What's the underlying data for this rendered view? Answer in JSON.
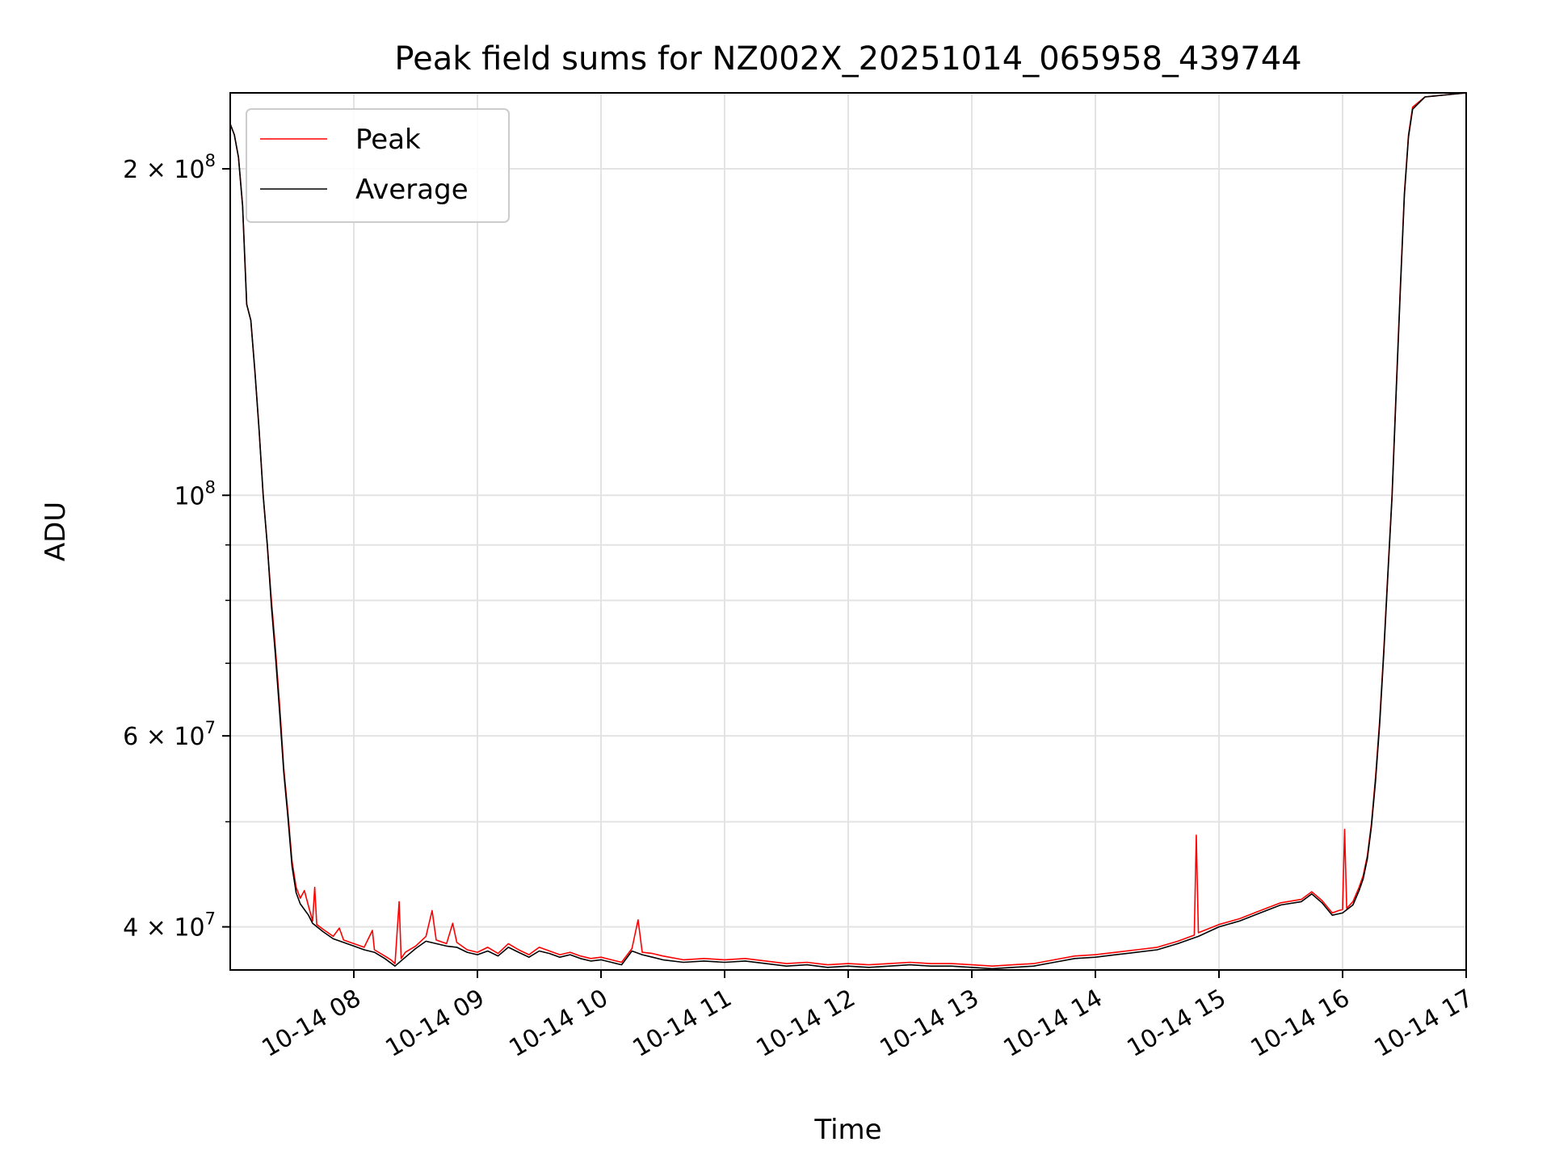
{
  "chart_data": {
    "type": "line",
    "title": "Peak field sums for NZ002X_20251014_065958_439744",
    "xlabel": "Time",
    "ylabel": "ADU",
    "xlim": [
      "2025-10-14 07:00",
      "2025-10-14 17:00"
    ],
    "ylim": [
      36500000,
      235000000
    ],
    "yscale": "log",
    "grid": true,
    "legend_position": "upper-left",
    "x_tick_labels": [
      "10-14 08",
      "10-14 09",
      "10-14 10",
      "10-14 11",
      "10-14 12",
      "10-14 13",
      "10-14 14",
      "10-14 15",
      "10-14 16",
      "10-14 17"
    ],
    "x_tick_times": [
      "2025-10-14 08:00",
      "2025-10-14 09:00",
      "2025-10-14 10:00",
      "2025-10-14 11:00",
      "2025-10-14 12:00",
      "2025-10-14 13:00",
      "2025-10-14 14:00",
      "2025-10-14 15:00",
      "2025-10-14 16:00",
      "2025-10-14 17:00"
    ],
    "y_major_ticks": [
      {
        "value": 40000000,
        "mantissa": "4 × 10",
        "exponent": "7"
      },
      {
        "value": 60000000,
        "mantissa": "6 × 10",
        "exponent": "7"
      },
      {
        "value": 100000000,
        "mantissa": "10",
        "exponent": "8"
      },
      {
        "value": 200000000,
        "mantissa": "2 × 10",
        "exponent": "8"
      }
    ],
    "y_minor_ticks": [
      50000000,
      70000000,
      80000000,
      90000000
    ],
    "series": [
      {
        "name": "Peak",
        "color": "#ff0000",
        "points": [
          [
            "07:00",
            220000000
          ],
          [
            "07:02",
            215000000
          ],
          [
            "07:04",
            205000000
          ],
          [
            "07:06",
            185000000
          ],
          [
            "07:08",
            150000000
          ],
          [
            "07:10",
            145000000
          ],
          [
            "07:12",
            130000000
          ],
          [
            "07:14",
            115000000
          ],
          [
            "07:16",
            100000000
          ],
          [
            "07:18",
            90000000
          ],
          [
            "07:20",
            80000000
          ],
          [
            "07:22",
            72000000
          ],
          [
            "07:24",
            64000000
          ],
          [
            "07:26",
            56000000
          ],
          [
            "07:28",
            51000000
          ],
          [
            "07:30",
            46000000
          ],
          [
            "07:32",
            43500000
          ],
          [
            "07:34",
            42500000
          ],
          [
            "07:36",
            43200000
          ],
          [
            "07:38",
            41800000
          ],
          [
            "07:40",
            40500000
          ],
          [
            "07:41",
            43500000
          ],
          [
            "07:42",
            40200000
          ],
          [
            "07:45",
            39800000
          ],
          [
            "07:50",
            39200000
          ],
          [
            "07:53",
            39900000
          ],
          [
            "07:55",
            38900000
          ],
          [
            "08:00",
            38600000
          ],
          [
            "08:05",
            38300000
          ],
          [
            "08:09",
            39700000
          ],
          [
            "08:10",
            38100000
          ],
          [
            "08:15",
            37600000
          ],
          [
            "08:18",
            37300000
          ],
          [
            "08:20",
            37000000
          ],
          [
            "08:22",
            42200000
          ],
          [
            "08:23",
            37400000
          ],
          [
            "08:25",
            37900000
          ],
          [
            "08:30",
            38400000
          ],
          [
            "08:35",
            39200000
          ],
          [
            "08:38",
            41400000
          ],
          [
            "08:40",
            38900000
          ],
          [
            "08:45",
            38600000
          ],
          [
            "08:48",
            40300000
          ],
          [
            "08:50",
            38700000
          ],
          [
            "08:55",
            38100000
          ],
          [
            "09:00",
            37900000
          ],
          [
            "09:05",
            38300000
          ],
          [
            "09:10",
            37800000
          ],
          [
            "09:15",
            38600000
          ],
          [
            "09:20",
            38100000
          ],
          [
            "09:25",
            37700000
          ],
          [
            "09:30",
            38300000
          ],
          [
            "09:35",
            38000000
          ],
          [
            "09:40",
            37700000
          ],
          [
            "09:45",
            37900000
          ],
          [
            "09:50",
            37600000
          ],
          [
            "09:55",
            37400000
          ],
          [
            "10:00",
            37500000
          ],
          [
            "10:05",
            37300000
          ],
          [
            "10:10",
            37100000
          ],
          [
            "10:15",
            38200000
          ],
          [
            "10:18",
            40600000
          ],
          [
            "10:20",
            37900000
          ],
          [
            "10:25",
            37800000
          ],
          [
            "10:30",
            37600000
          ],
          [
            "10:40",
            37300000
          ],
          [
            "10:50",
            37400000
          ],
          [
            "11:00",
            37300000
          ],
          [
            "11:10",
            37400000
          ],
          [
            "11:20",
            37200000
          ],
          [
            "11:30",
            37000000
          ],
          [
            "11:40",
            37100000
          ],
          [
            "11:50",
            36900000
          ],
          [
            "12:00",
            37000000
          ],
          [
            "12:10",
            36900000
          ],
          [
            "12:20",
            37000000
          ],
          [
            "12:30",
            37100000
          ],
          [
            "12:40",
            37000000
          ],
          [
            "12:50",
            37000000
          ],
          [
            "13:00",
            36900000
          ],
          [
            "13:10",
            36800000
          ],
          [
            "13:20",
            36900000
          ],
          [
            "13:30",
            37000000
          ],
          [
            "13:40",
            37300000
          ],
          [
            "13:50",
            37600000
          ],
          [
            "14:00",
            37700000
          ],
          [
            "14:10",
            37900000
          ],
          [
            "14:20",
            38100000
          ],
          [
            "14:30",
            38300000
          ],
          [
            "14:40",
            38800000
          ],
          [
            "14:48",
            39300000
          ],
          [
            "14:49",
            48600000
          ],
          [
            "14:50",
            39500000
          ],
          [
            "15:00",
            40200000
          ],
          [
            "15:10",
            40700000
          ],
          [
            "15:20",
            41400000
          ],
          [
            "15:30",
            42100000
          ],
          [
            "15:40",
            42400000
          ],
          [
            "15:45",
            43100000
          ],
          [
            "15:50",
            42300000
          ],
          [
            "15:55",
            41200000
          ],
          [
            "15:58",
            41400000
          ],
          [
            "16:00",
            41500000
          ],
          [
            "16:01",
            49200000
          ],
          [
            "16:02",
            41600000
          ],
          [
            "16:05",
            42200000
          ],
          [
            "16:08",
            43500000
          ],
          [
            "16:10",
            44600000
          ],
          [
            "16:12",
            46500000
          ],
          [
            "16:14",
            49800000
          ],
          [
            "16:16",
            55000000
          ],
          [
            "16:18",
            62000000
          ],
          [
            "16:20",
            72000000
          ],
          [
            "16:22",
            85000000
          ],
          [
            "16:24",
            100000000
          ],
          [
            "16:26",
            125000000
          ],
          [
            "16:28",
            155000000
          ],
          [
            "16:30",
            190000000
          ],
          [
            "16:32",
            215000000
          ],
          [
            "16:34",
            228000000
          ],
          [
            "16:40",
            233000000
          ],
          [
            "17:00",
            235000000
          ]
        ]
      },
      {
        "name": "Average",
        "color": "#000000",
        "points": [
          [
            "07:00",
            220000000
          ],
          [
            "07:02",
            215000000
          ],
          [
            "07:04",
            205000000
          ],
          [
            "07:06",
            185000000
          ],
          [
            "07:08",
            150000000
          ],
          [
            "07:10",
            145000000
          ],
          [
            "07:12",
            130000000
          ],
          [
            "07:14",
            115000000
          ],
          [
            "07:16",
            100000000
          ],
          [
            "07:18",
            90000000
          ],
          [
            "07:20",
            79000000
          ],
          [
            "07:22",
            71000000
          ],
          [
            "07:24",
            63000000
          ],
          [
            "07:26",
            55500000
          ],
          [
            "07:28",
            50500000
          ],
          [
            "07:30",
            45500000
          ],
          [
            "07:32",
            43000000
          ],
          [
            "07:34",
            42000000
          ],
          [
            "07:36",
            41500000
          ],
          [
            "07:38",
            41000000
          ],
          [
            "07:40",
            40300000
          ],
          [
            "07:45",
            39600000
          ],
          [
            "07:50",
            39000000
          ],
          [
            "07:55",
            38700000
          ],
          [
            "08:00",
            38400000
          ],
          [
            "08:05",
            38100000
          ],
          [
            "08:10",
            37900000
          ],
          [
            "08:15",
            37400000
          ],
          [
            "08:20",
            36800000
          ],
          [
            "08:25",
            37500000
          ],
          [
            "08:30",
            38200000
          ],
          [
            "08:35",
            38800000
          ],
          [
            "08:40",
            38600000
          ],
          [
            "08:45",
            38400000
          ],
          [
            "08:50",
            38300000
          ],
          [
            "08:55",
            37900000
          ],
          [
            "09:00",
            37700000
          ],
          [
            "09:05",
            38000000
          ],
          [
            "09:10",
            37600000
          ],
          [
            "09:15",
            38300000
          ],
          [
            "09:20",
            37900000
          ],
          [
            "09:25",
            37500000
          ],
          [
            "09:30",
            38000000
          ],
          [
            "09:35",
            37800000
          ],
          [
            "09:40",
            37500000
          ],
          [
            "09:45",
            37700000
          ],
          [
            "09:50",
            37400000
          ],
          [
            "09:55",
            37200000
          ],
          [
            "10:00",
            37300000
          ],
          [
            "10:05",
            37100000
          ],
          [
            "10:10",
            36900000
          ],
          [
            "10:15",
            38000000
          ],
          [
            "10:20",
            37700000
          ],
          [
            "10:25",
            37500000
          ],
          [
            "10:30",
            37300000
          ],
          [
            "10:40",
            37100000
          ],
          [
            "10:50",
            37200000
          ],
          [
            "11:00",
            37100000
          ],
          [
            "11:10",
            37200000
          ],
          [
            "11:20",
            37000000
          ],
          [
            "11:30",
            36800000
          ],
          [
            "11:40",
            36900000
          ],
          [
            "11:50",
            36700000
          ],
          [
            "12:00",
            36800000
          ],
          [
            "12:10",
            36700000
          ],
          [
            "12:20",
            36800000
          ],
          [
            "12:30",
            36900000
          ],
          [
            "12:40",
            36800000
          ],
          [
            "12:50",
            36800000
          ],
          [
            "13:00",
            36700000
          ],
          [
            "13:10",
            36600000
          ],
          [
            "13:20",
            36700000
          ],
          [
            "13:30",
            36800000
          ],
          [
            "13:40",
            37100000
          ],
          [
            "13:50",
            37400000
          ],
          [
            "14:00",
            37500000
          ],
          [
            "14:10",
            37700000
          ],
          [
            "14:20",
            37900000
          ],
          [
            "14:30",
            38100000
          ],
          [
            "14:40",
            38600000
          ],
          [
            "14:50",
            39200000
          ],
          [
            "15:00",
            40000000
          ],
          [
            "15:10",
            40500000
          ],
          [
            "15:20",
            41200000
          ],
          [
            "15:30",
            41900000
          ],
          [
            "15:40",
            42200000
          ],
          [
            "15:45",
            42900000
          ],
          [
            "15:50",
            42100000
          ],
          [
            "15:55",
            41000000
          ],
          [
            "16:00",
            41200000
          ],
          [
            "16:05",
            41900000
          ],
          [
            "16:08",
            43200000
          ],
          [
            "16:10",
            44300000
          ],
          [
            "16:12",
            46200000
          ],
          [
            "16:14",
            49500000
          ],
          [
            "16:16",
            54500000
          ],
          [
            "16:18",
            61500000
          ],
          [
            "16:20",
            71500000
          ],
          [
            "16:22",
            84500000
          ],
          [
            "16:24",
            99500000
          ],
          [
            "16:26",
            124000000
          ],
          [
            "16:28",
            154000000
          ],
          [
            "16:30",
            189000000
          ],
          [
            "16:32",
            214000000
          ],
          [
            "16:34",
            227000000
          ],
          [
            "16:40",
            233000000
          ],
          [
            "17:00",
            235000000
          ]
        ]
      }
    ]
  }
}
